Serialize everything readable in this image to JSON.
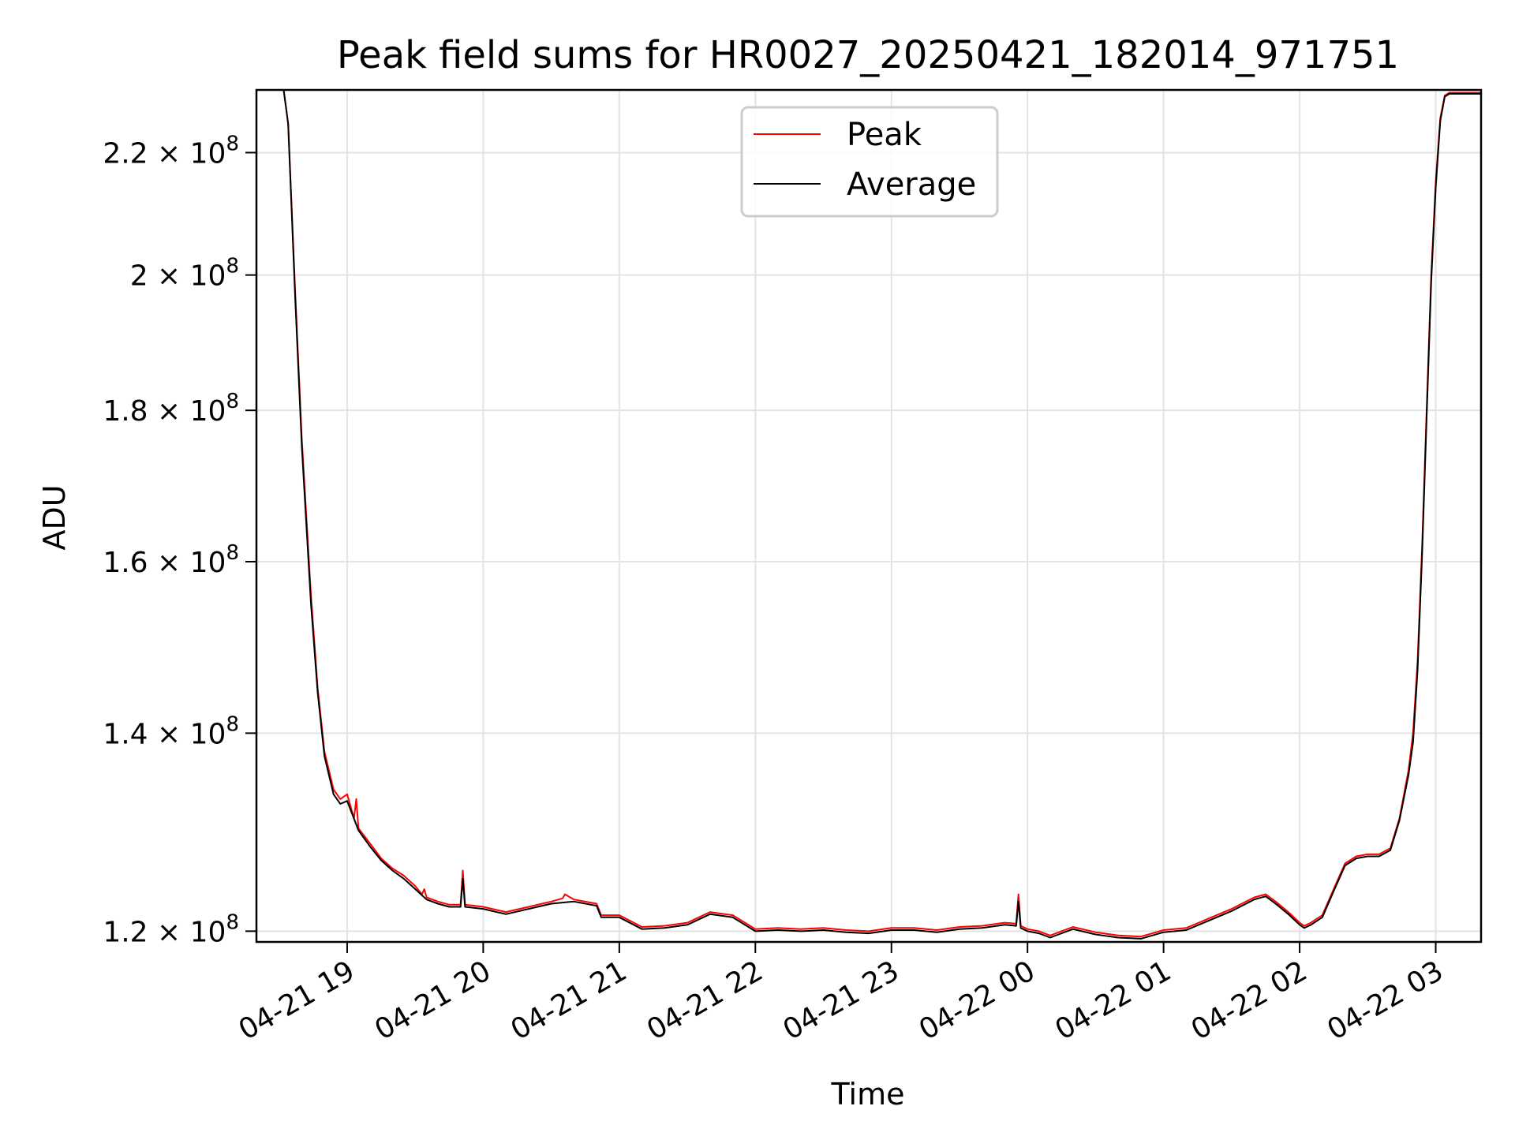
{
  "chart_data": {
    "type": "line",
    "title": "Peak field sums for HR0027_20250421_182014_971751",
    "xlabel": "Time",
    "ylabel": "ADU",
    "y_scale": "log",
    "ylim": [
      119000000,
      231000000
    ],
    "xlim": [
      "2025-04-21 18:20",
      "2025-04-22 03:20"
    ],
    "grid": true,
    "legend_position": "top-center",
    "x_ticks": [
      {
        "t": "2025-04-21 19:00",
        "label": "04-21 19"
      },
      {
        "t": "2025-04-21 20:00",
        "label": "04-21 20"
      },
      {
        "t": "2025-04-21 21:00",
        "label": "04-21 21"
      },
      {
        "t": "2025-04-21 22:00",
        "label": "04-21 22"
      },
      {
        "t": "2025-04-21 23:00",
        "label": "04-21 23"
      },
      {
        "t": "2025-04-22 00:00",
        "label": "04-22 00"
      },
      {
        "t": "2025-04-22 01:00",
        "label": "04-22 01"
      },
      {
        "t": "2025-04-22 02:00",
        "label": "04-22 02"
      },
      {
        "t": "2025-04-22 03:00",
        "label": "04-22 03"
      }
    ],
    "y_ticks": [
      {
        "value": 120000000,
        "mant": "1.2",
        "exp": "8"
      },
      {
        "value": 140000000,
        "mant": "1.4",
        "exp": "8"
      },
      {
        "value": 160000000,
        "mant": "1.6",
        "exp": "8"
      },
      {
        "value": 180000000,
        "mant": "1.8",
        "exp": "8"
      },
      {
        "value": 200000000,
        "mant": "2",
        "exp": "8"
      },
      {
        "value": 220000000,
        "mant": "2.2",
        "exp": "8"
      }
    ],
    "series": [
      {
        "name": "Peak",
        "color": "#ff0000",
        "points": [
          [
            "2025-04-21 18:32",
            231000000
          ],
          [
            "2025-04-21 18:34",
            225000000
          ],
          [
            "2025-04-21 18:37",
            198000000
          ],
          [
            "2025-04-21 18:40",
            176000000
          ],
          [
            "2025-04-21 18:44",
            156000000
          ],
          [
            "2025-04-21 18:47",
            145000000
          ],
          [
            "2025-04-21 18:50",
            138000000
          ],
          [
            "2025-04-21 18:54",
            134000000
          ],
          [
            "2025-04-21 18:57",
            133000000
          ],
          [
            "2025-04-21 19:00",
            133500000
          ],
          [
            "2025-04-21 19:03",
            131000000
          ],
          [
            "2025-04-21 19:04",
            133000000
          ],
          [
            "2025-04-21 19:05",
            130000000
          ],
          [
            "2025-04-21 19:10",
            128500000
          ],
          [
            "2025-04-21 19:15",
            127000000
          ],
          [
            "2025-04-21 19:20",
            126000000
          ],
          [
            "2025-04-21 19:25",
            125300000
          ],
          [
            "2025-04-21 19:30",
            124300000
          ],
          [
            "2025-04-21 19:33",
            123500000
          ],
          [
            "2025-04-21 19:34",
            124000000
          ],
          [
            "2025-04-21 19:35",
            123200000
          ],
          [
            "2025-04-21 19:40",
            122800000
          ],
          [
            "2025-04-21 19:45",
            122500000
          ],
          [
            "2025-04-21 19:50",
            122500000
          ],
          [
            "2025-04-21 19:51",
            125800000
          ],
          [
            "2025-04-21 19:52",
            122500000
          ],
          [
            "2025-04-21 20:00",
            122300000
          ],
          [
            "2025-04-21 20:10",
            121800000
          ],
          [
            "2025-04-21 20:20",
            122300000
          ],
          [
            "2025-04-21 20:30",
            122800000
          ],
          [
            "2025-04-21 20:35",
            123100000
          ],
          [
            "2025-04-21 20:36",
            123500000
          ],
          [
            "2025-04-21 20:40",
            123000000
          ],
          [
            "2025-04-21 20:50",
            122600000
          ],
          [
            "2025-04-21 20:52",
            121500000
          ],
          [
            "2025-04-21 21:00",
            121500000
          ],
          [
            "2025-04-21 21:10",
            120400000
          ],
          [
            "2025-04-21 21:20",
            120500000
          ],
          [
            "2025-04-21 21:30",
            120800000
          ],
          [
            "2025-04-21 21:40",
            121800000
          ],
          [
            "2025-04-21 21:50",
            121500000
          ],
          [
            "2025-04-21 22:00",
            120200000
          ],
          [
            "2025-04-21 22:10",
            120300000
          ],
          [
            "2025-04-21 22:20",
            120200000
          ],
          [
            "2025-04-21 22:30",
            120300000
          ],
          [
            "2025-04-21 22:40",
            120100000
          ],
          [
            "2025-04-21 22:50",
            120000000
          ],
          [
            "2025-04-21 23:00",
            120300000
          ],
          [
            "2025-04-21 23:10",
            120300000
          ],
          [
            "2025-04-21 23:20",
            120100000
          ],
          [
            "2025-04-21 23:30",
            120400000
          ],
          [
            "2025-04-21 23:40",
            120500000
          ],
          [
            "2025-04-21 23:50",
            120800000
          ],
          [
            "2025-04-21 23:55",
            120700000
          ],
          [
            "2025-04-21 23:56",
            123500000
          ],
          [
            "2025-04-21 23:57",
            120500000
          ],
          [
            "2025-04-22 00:00",
            120200000
          ],
          [
            "2025-04-22 00:05",
            120000000
          ],
          [
            "2025-04-22 00:10",
            119600000
          ],
          [
            "2025-04-22 00:20",
            120400000
          ],
          [
            "2025-04-22 00:30",
            119900000
          ],
          [
            "2025-04-22 00:40",
            119600000
          ],
          [
            "2025-04-22 00:50",
            119500000
          ],
          [
            "2025-04-22 01:00",
            120100000
          ],
          [
            "2025-04-22 01:10",
            120300000
          ],
          [
            "2025-04-22 01:20",
            121200000
          ],
          [
            "2025-04-22 01:30",
            122100000
          ],
          [
            "2025-04-22 01:40",
            123200000
          ],
          [
            "2025-04-22 01:45",
            123500000
          ],
          [
            "2025-04-22 01:50",
            122700000
          ],
          [
            "2025-04-22 01:55",
            121800000
          ],
          [
            "2025-04-22 02:00",
            120800000
          ],
          [
            "2025-04-22 02:02",
            120500000
          ],
          [
            "2025-04-22 02:05",
            120800000
          ],
          [
            "2025-04-22 02:10",
            121500000
          ],
          [
            "2025-04-22 02:12",
            122500000
          ],
          [
            "2025-04-22 02:15",
            124000000
          ],
          [
            "2025-04-22 02:20",
            126500000
          ],
          [
            "2025-04-22 02:25",
            127200000
          ],
          [
            "2025-04-22 02:30",
            127400000
          ],
          [
            "2025-04-22 02:35",
            127400000
          ],
          [
            "2025-04-22 02:40",
            128000000
          ],
          [
            "2025-04-22 02:44",
            131000000
          ],
          [
            "2025-04-22 02:48",
            136000000
          ],
          [
            "2025-04-22 02:50",
            140000000
          ],
          [
            "2025-04-22 02:52",
            148000000
          ],
          [
            "2025-04-22 02:54",
            162000000
          ],
          [
            "2025-04-22 02:56",
            180000000
          ],
          [
            "2025-04-22 02:58",
            200000000
          ],
          [
            "2025-04-22 03:00",
            215000000
          ],
          [
            "2025-04-22 03:02",
            226000000
          ],
          [
            "2025-04-22 03:04",
            230000000
          ],
          [
            "2025-04-22 03:06",
            230500000
          ],
          [
            "2025-04-22 03:20",
            230500000
          ]
        ]
      },
      {
        "name": "Average",
        "color": "#000000",
        "points": [
          [
            "2025-04-21 18:32",
            231000000
          ],
          [
            "2025-04-21 18:34",
            225000000
          ],
          [
            "2025-04-21 18:37",
            197000000
          ],
          [
            "2025-04-21 18:40",
            175000000
          ],
          [
            "2025-04-21 18:44",
            155000000
          ],
          [
            "2025-04-21 18:47",
            144500000
          ],
          [
            "2025-04-21 18:50",
            137500000
          ],
          [
            "2025-04-21 18:54",
            133500000
          ],
          [
            "2025-04-21 18:57",
            132500000
          ],
          [
            "2025-04-21 19:00",
            132800000
          ],
          [
            "2025-04-21 19:05",
            129800000
          ],
          [
            "2025-04-21 19:10",
            128200000
          ],
          [
            "2025-04-21 19:15",
            126800000
          ],
          [
            "2025-04-21 19:20",
            125800000
          ],
          [
            "2025-04-21 19:25",
            125000000
          ],
          [
            "2025-04-21 19:30",
            124000000
          ],
          [
            "2025-04-21 19:35",
            123000000
          ],
          [
            "2025-04-21 19:40",
            122600000
          ],
          [
            "2025-04-21 19:45",
            122300000
          ],
          [
            "2025-04-21 19:50",
            122300000
          ],
          [
            "2025-04-21 19:51",
            125000000
          ],
          [
            "2025-04-21 19:52",
            122300000
          ],
          [
            "2025-04-21 20:00",
            122100000
          ],
          [
            "2025-04-21 20:10",
            121600000
          ],
          [
            "2025-04-21 20:20",
            122100000
          ],
          [
            "2025-04-21 20:30",
            122600000
          ],
          [
            "2025-04-21 20:40",
            122800000
          ],
          [
            "2025-04-21 20:50",
            122400000
          ],
          [
            "2025-04-21 20:52",
            121300000
          ],
          [
            "2025-04-21 21:00",
            121300000
          ],
          [
            "2025-04-21 21:10",
            120200000
          ],
          [
            "2025-04-21 21:20",
            120300000
          ],
          [
            "2025-04-21 21:30",
            120600000
          ],
          [
            "2025-04-21 21:40",
            121600000
          ],
          [
            "2025-04-21 21:50",
            121300000
          ],
          [
            "2025-04-21 22:00",
            120000000
          ],
          [
            "2025-04-21 22:10",
            120100000
          ],
          [
            "2025-04-21 22:20",
            120000000
          ],
          [
            "2025-04-21 22:30",
            120100000
          ],
          [
            "2025-04-21 22:40",
            119900000
          ],
          [
            "2025-04-21 22:50",
            119800000
          ],
          [
            "2025-04-21 23:00",
            120100000
          ],
          [
            "2025-04-21 23:10",
            120100000
          ],
          [
            "2025-04-21 23:20",
            119900000
          ],
          [
            "2025-04-21 23:30",
            120200000
          ],
          [
            "2025-04-21 23:40",
            120300000
          ],
          [
            "2025-04-21 23:50",
            120600000
          ],
          [
            "2025-04-21 23:55",
            120500000
          ],
          [
            "2025-04-21 23:56",
            122800000
          ],
          [
            "2025-04-21 23:57",
            120300000
          ],
          [
            "2025-04-22 00:00",
            120000000
          ],
          [
            "2025-04-22 00:05",
            119800000
          ],
          [
            "2025-04-22 00:10",
            119400000
          ],
          [
            "2025-04-22 00:20",
            120200000
          ],
          [
            "2025-04-22 00:30",
            119700000
          ],
          [
            "2025-04-22 00:40",
            119400000
          ],
          [
            "2025-04-22 00:50",
            119300000
          ],
          [
            "2025-04-22 01:00",
            119900000
          ],
          [
            "2025-04-22 01:10",
            120100000
          ],
          [
            "2025-04-22 01:20",
            121000000
          ],
          [
            "2025-04-22 01:30",
            121900000
          ],
          [
            "2025-04-22 01:40",
            123000000
          ],
          [
            "2025-04-22 01:45",
            123300000
          ],
          [
            "2025-04-22 01:50",
            122500000
          ],
          [
            "2025-04-22 01:55",
            121600000
          ],
          [
            "2025-04-22 02:00",
            120600000
          ],
          [
            "2025-04-22 02:02",
            120300000
          ],
          [
            "2025-04-22 02:05",
            120600000
          ],
          [
            "2025-04-22 02:10",
            121300000
          ],
          [
            "2025-04-22 02:12",
            122300000
          ],
          [
            "2025-04-22 02:15",
            123800000
          ],
          [
            "2025-04-22 02:20",
            126300000
          ],
          [
            "2025-04-22 02:25",
            127000000
          ],
          [
            "2025-04-22 02:30",
            127200000
          ],
          [
            "2025-04-22 02:35",
            127200000
          ],
          [
            "2025-04-22 02:40",
            127800000
          ],
          [
            "2025-04-22 02:44",
            130800000
          ],
          [
            "2025-04-22 02:48",
            135500000
          ],
          [
            "2025-04-22 02:50",
            139000000
          ],
          [
            "2025-04-22 02:52",
            147000000
          ],
          [
            "2025-04-22 02:54",
            161000000
          ],
          [
            "2025-04-22 02:56",
            179000000
          ],
          [
            "2025-04-22 02:58",
            199000000
          ],
          [
            "2025-04-22 03:00",
            214000000
          ],
          [
            "2025-04-22 03:02",
            225500000
          ],
          [
            "2025-04-22 03:04",
            229800000
          ],
          [
            "2025-04-22 03:06",
            230300000
          ],
          [
            "2025-04-22 03:20",
            230300000
          ]
        ]
      }
    ]
  }
}
